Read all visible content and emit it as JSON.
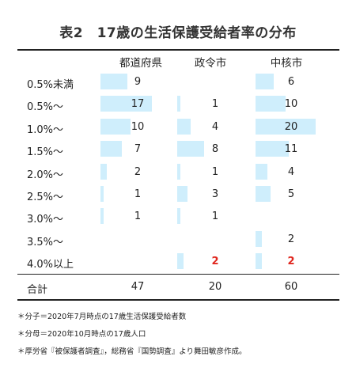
{
  "title": "表2　17歳の生活保護受給者率の分布",
  "columns": [
    "都道府県",
    "政令市",
    "中核市"
  ],
  "bar_color": "#cfeefc",
  "highlight_color": "#e0261e",
  "rows": [
    {
      "label": "0.5%未満",
      "values": [
        9,
        null,
        6
      ]
    },
    {
      "label": "0.5%〜",
      "values": [
        17,
        1,
        10
      ]
    },
    {
      "label": "1.0%〜",
      "values": [
        10,
        4,
        20
      ]
    },
    {
      "label": "1.5%〜",
      "values": [
        7,
        8,
        11
      ]
    },
    {
      "label": "2.0%〜",
      "values": [
        2,
        1,
        4
      ]
    },
    {
      "label": "2.5%〜",
      "values": [
        1,
        3,
        5
      ]
    },
    {
      "label": "3.0%〜",
      "values": [
        1,
        1,
        null
      ]
    },
    {
      "label": "3.5%〜",
      "values": [
        null,
        null,
        2
      ]
    },
    {
      "label": "4.0%以上",
      "values": [
        null,
        2,
        2
      ],
      "highlight": true
    }
  ],
  "total": {
    "label": "合計",
    "values": [
      47,
      20,
      60
    ]
  },
  "notes": [
    "＊分子＝2020年7月時点の17歳生活保護受給者数",
    "＊分母＝2020年10月時点の17歳人口",
    "＊厚労省『被保護者調査』，総務省『国勢調査』より舞田敏彦作成。"
  ]
}
